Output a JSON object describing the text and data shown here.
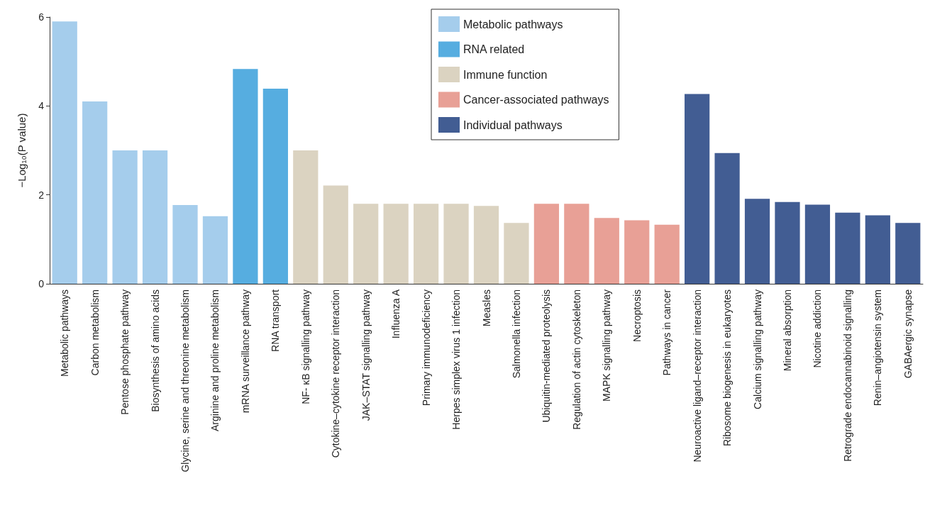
{
  "chart_data": {
    "type": "bar",
    "ylabel": "−Log₁₀(P value)",
    "ylim": [
      0,
      6
    ],
    "yticks": [
      0,
      2,
      4,
      6
    ],
    "grid": false,
    "legend": "top right",
    "categories": [
      "Metabolic pathways",
      "Carbon metabolism",
      "Pentose phosphate pathway",
      "Biosynthesis of amino acids",
      "Glycine, serine and threonine metabolism",
      "Arginine and proline metabolism",
      "mRNA surveillance pathway",
      "RNA transport",
      "NF- κB signalling pathway",
      "Cytokine–cytokine receptor interaction",
      "JAK–STAT signalling pathway",
      "Influenza A",
      "Primary immunodeficiency",
      "Herpes simplex virus 1 infection",
      "Measles",
      "Salmonella infection",
      "Ubiquitin-mediated proteolysis",
      "Regulation of actin cytoskeleton",
      "MAPK signalling pathway",
      "Necroptosis",
      "Pathways in cancer",
      "Neuroactive ligand–receptor interaction",
      "Ribosome biogenesis in eukaryotes",
      "Calcium signalling pathway",
      "Mineral absorption",
      "Nicotine addiction",
      "Retrograde endocannabinoid signalling",
      "Renin–angiotensin system",
      "GABAergic synapse"
    ],
    "series": [
      {
        "name": "Metabolic pathways",
        "color": "#a5cdec",
        "values": [
          5.9,
          4.1,
          3.0,
          3.0,
          1.77,
          1.52,
          null,
          null,
          null,
          null,
          null,
          null,
          null,
          null,
          null,
          null,
          null,
          null,
          null,
          null,
          null,
          null,
          null,
          null,
          null,
          null,
          null,
          null,
          null
        ]
      },
      {
        "name": "RNA related",
        "color": "#56ade0",
        "values": [
          null,
          null,
          null,
          null,
          null,
          null,
          4.83,
          4.39,
          null,
          null,
          null,
          null,
          null,
          null,
          null,
          null,
          null,
          null,
          null,
          null,
          null,
          null,
          null,
          null,
          null,
          null,
          null,
          null,
          null
        ]
      },
      {
        "name": "Immune function",
        "color": "#dbd3c1",
        "values": [
          null,
          null,
          null,
          null,
          null,
          null,
          null,
          null,
          3.0,
          2.21,
          1.8,
          1.8,
          1.8,
          1.8,
          1.75,
          1.37,
          null,
          null,
          null,
          null,
          null,
          null,
          null,
          null,
          null,
          null,
          null,
          null,
          null
        ]
      },
      {
        "name": "Cancer-associated pathways",
        "color": "#e8a096",
        "values": [
          null,
          null,
          null,
          null,
          null,
          null,
          null,
          null,
          null,
          null,
          null,
          null,
          null,
          null,
          null,
          null,
          1.8,
          1.8,
          1.48,
          1.43,
          1.33,
          null,
          null,
          null,
          null,
          null,
          null,
          null,
          null
        ]
      },
      {
        "name": "Individual pathways",
        "color": "#425d93",
        "values": [
          null,
          null,
          null,
          null,
          null,
          null,
          null,
          null,
          null,
          null,
          null,
          null,
          null,
          null,
          null,
          null,
          null,
          null,
          null,
          null,
          null,
          4.27,
          2.94,
          1.91,
          1.84,
          1.78,
          1.6,
          1.54,
          1.37
        ]
      }
    ]
  }
}
